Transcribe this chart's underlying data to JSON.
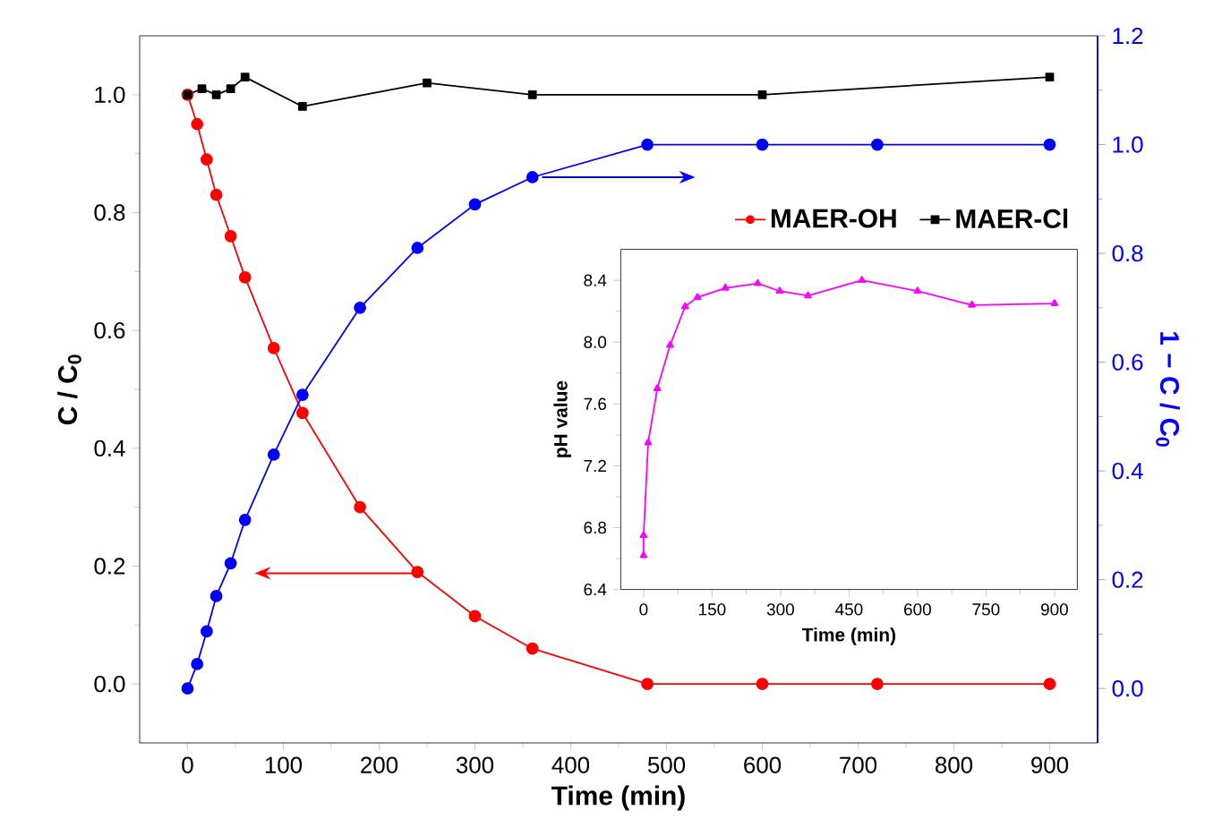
{
  "chart_data": [
    {
      "type": "line",
      "xlabel": "Time (min)",
      "ylabel": "C / C$_{0}$",
      "y2label": "1 − C / C$_{0}$",
      "xlim": [
        -50,
        950
      ],
      "xticks": [
        0,
        100,
        200,
        300,
        400,
        500,
        600,
        700,
        800,
        900
      ],
      "ylim": [
        -0.1,
        1.1
      ],
      "yticks": [
        {
          "value": 0,
          "label": "0.0"
        },
        0.2,
        0.4,
        0.6,
        0.8,
        {
          "value": 1,
          "label": "1.0"
        }
      ],
      "y2lim": [
        -0.1,
        1.2
      ],
      "y2ticks": [
        {
          "value": 0,
          "label": "0.0"
        },
        0.2,
        0.4,
        0.6,
        0.8,
        {
          "value": 1,
          "label": "1.0"
        },
        1.2
      ],
      "legend": "right",
      "marker": "circle",
      "line_style": "solid",
      "series": [
        {
          "name": "MAER-OH",
          "color": "#ff0000",
          "x": [
            0,
            10,
            20,
            30,
            45,
            60,
            90,
            120,
            180,
            240,
            300,
            360,
            480,
            600,
            720,
            900
          ],
          "values": [
            1.0,
            0.95,
            0.89,
            0.83,
            0.76,
            0.69,
            0.57,
            0.46,
            0.3,
            0.19,
            0.115,
            0.06,
            0,
            0,
            0,
            0
          ]
        },
        {
          "color": "#0000ff",
          "axis": "y2",
          "x": [
            0,
            10,
            20,
            30,
            45,
            60,
            90,
            120,
            180,
            240,
            300,
            360,
            480,
            600,
            720,
            900
          ],
          "values": [
            0,
            0.045,
            0.105,
            0.17,
            0.23,
            0.31,
            0.43,
            0.54,
            0.7,
            0.81,
            0.89,
            0.94,
            1.0,
            1.0,
            1.0,
            1.0
          ]
        },
        {
          "name": "MAER-Cl",
          "color": "#000000",
          "marker": "square",
          "x": [
            0,
            15,
            30,
            45,
            60,
            120,
            250,
            360,
            600,
            900
          ],
          "values": [
            1.0,
            1.01,
            1.0,
            1.01,
            1.03,
            0.98,
            1.02,
            1.0,
            1.0,
            1.03
          ]
        }
      ]
    },
    {
      "type": "line",
      "xlabel": "Time (min)",
      "ylabel": "pH value",
      "xlim": [
        -50,
        950
      ],
      "xticks": [
        0,
        150,
        300,
        450,
        600,
        750,
        900
      ],
      "ylim": [
        6.4,
        8.6
      ],
      "yticks": [
        6.4,
        6.8,
        7.2,
        7.6,
        {
          "value": 8,
          "label": "8.0"
        },
        8.4
      ],
      "marker": "triangle",
      "line_style": "solid",
      "series": [
        {
          "color": "#ff00ff",
          "x": [
            0,
            0,
            10,
            30,
            58,
            91,
            118,
            179,
            250,
            298,
            360,
            478,
            600,
            719,
            900
          ],
          "values": [
            6.62,
            6.75,
            7.35,
            7.7,
            7.98,
            8.23,
            8.29,
            8.35,
            8.38,
            8.33,
            8.3,
            8.4,
            8.33,
            8.24,
            8.25
          ]
        }
      ]
    }
  ]
}
